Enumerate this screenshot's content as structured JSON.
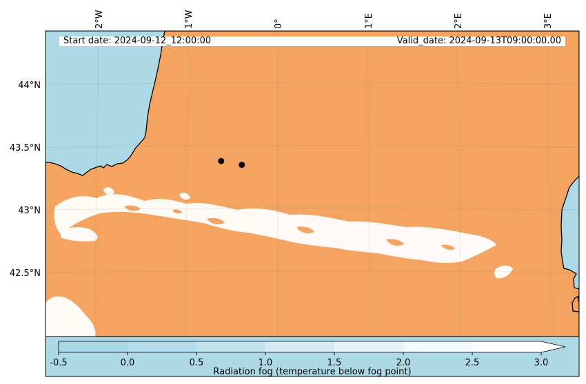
{
  "map": {
    "longitude_labels": [
      "2°W",
      "1°W",
      "0°",
      "1°E",
      "2°E",
      "3°E"
    ],
    "latitude_labels": [
      "44°N",
      "43.5°N",
      "43°N",
      "42.5°N"
    ],
    "start_date": "Start date: 2024-09-12_12:00:00",
    "valid_date": "Valid_date: 2024-09-13T09:00:00.00",
    "colors": {
      "sea": "#add8e6",
      "land": "#f4a460",
      "fog": "#ffffff",
      "coastline": "#000000"
    },
    "points": [
      {
        "label": "",
        "lon": -0.63,
        "lat": 43.39
      },
      {
        "label": "",
        "lon": -0.4,
        "lat": 43.36
      }
    ]
  },
  "colorbar": {
    "ticks": [
      "-0.5",
      "0.0",
      "0.5",
      "1.0",
      "1.5",
      "2.0",
      "2.5",
      "3.0"
    ],
    "label": "Radiation fog (temperature below fog point)",
    "colors": [
      "#a9d6e5",
      "#b3dcea",
      "#c2e3ee",
      "#d4ebf3",
      "#e6f3f8",
      "#f4fafc",
      "#ffffff"
    ],
    "extend": "max"
  }
}
